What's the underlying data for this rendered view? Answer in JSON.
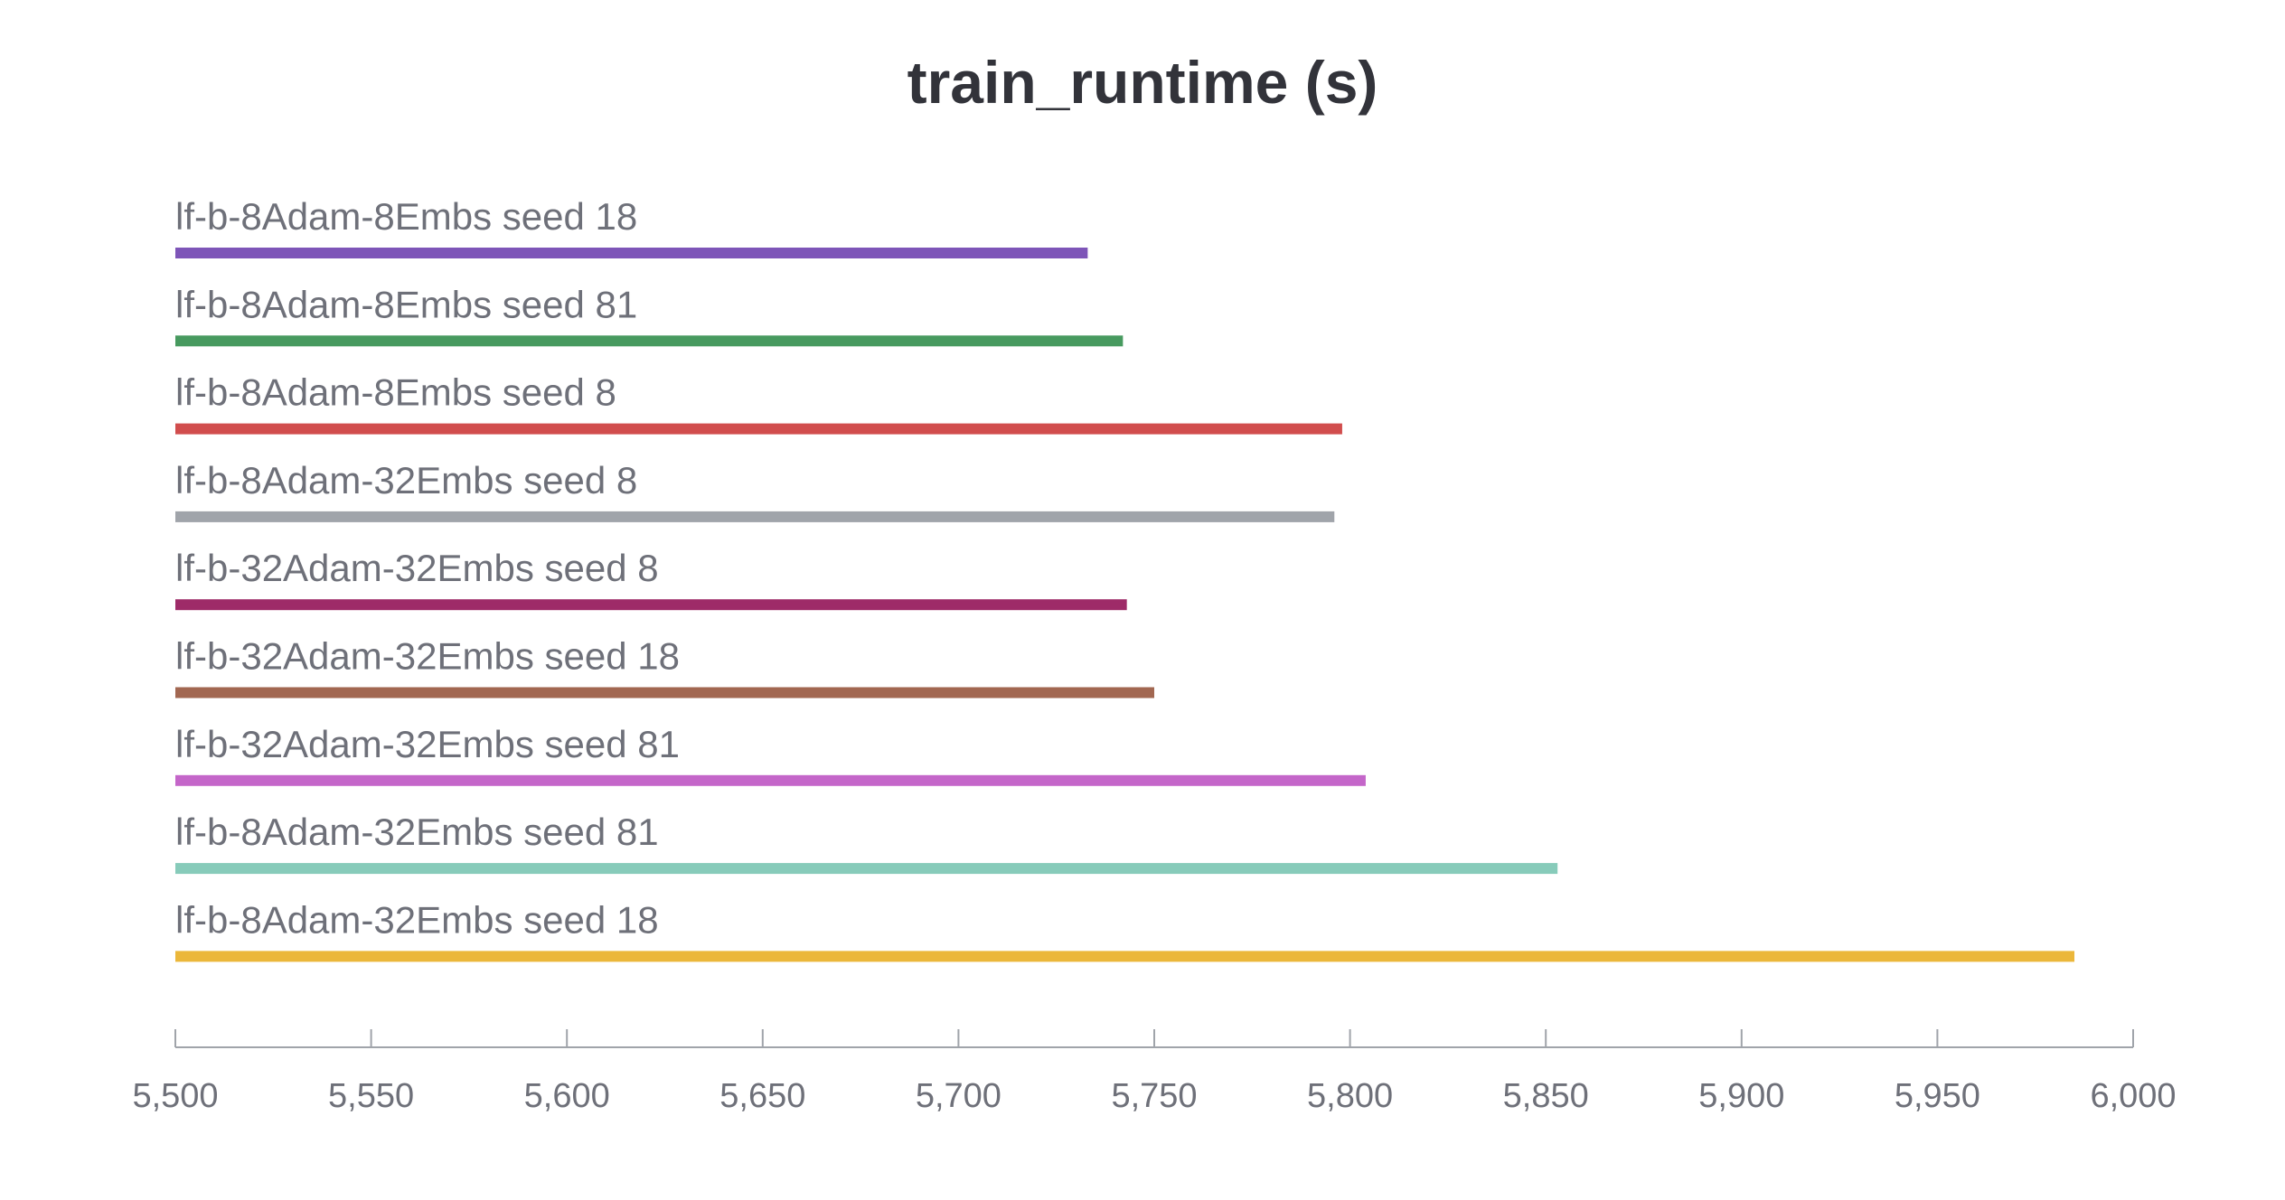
{
  "chart_data": {
    "type": "bar",
    "orientation": "horizontal",
    "title": "train_runtime (s)",
    "xlabel": "",
    "ylabel": "",
    "xlim": [
      5500,
      6000
    ],
    "grid": false,
    "legend": "none",
    "x_ticks": [
      "5,500",
      "5,550",
      "5,600",
      "5,650",
      "5,700",
      "5,750",
      "5,800",
      "5,850",
      "5,900",
      "5,950",
      "6,000"
    ],
    "x_tick_values": [
      5500,
      5550,
      5600,
      5650,
      5700,
      5750,
      5800,
      5850,
      5900,
      5950,
      6000
    ],
    "bars": [
      {
        "label": "lf-b-8Adam-8Embs seed 18",
        "value": 5733,
        "color": "#7e55b8"
      },
      {
        "label": "lf-b-8Adam-8Embs seed 81",
        "value": 5742,
        "color": "#479a5f"
      },
      {
        "label": "lf-b-8Adam-8Embs seed 8",
        "value": 5798,
        "color": "#d14d4d"
      },
      {
        "label": "lf-b-8Adam-32Embs seed 8",
        "value": 5796,
        "color": "#a0a4aa"
      },
      {
        "label": "lf-b-32Adam-32Embs seed 8",
        "value": 5743,
        "color": "#9e2b68"
      },
      {
        "label": "lf-b-32Adam-32Embs seed 18",
        "value": 5750,
        "color": "#a26751"
      },
      {
        "label": "lf-b-32Adam-32Embs seed 81",
        "value": 5804,
        "color": "#c466c9"
      },
      {
        "label": "lf-b-8Adam-32Embs seed 81",
        "value": 5853,
        "color": "#87cbba"
      },
      {
        "label": "lf-b-8Adam-32Embs seed 18",
        "value": 5985,
        "color": "#ebb73a"
      }
    ]
  },
  "colors": {
    "title": "#32333a",
    "label": "#6e7079",
    "axis": "#a0a4aa"
  }
}
